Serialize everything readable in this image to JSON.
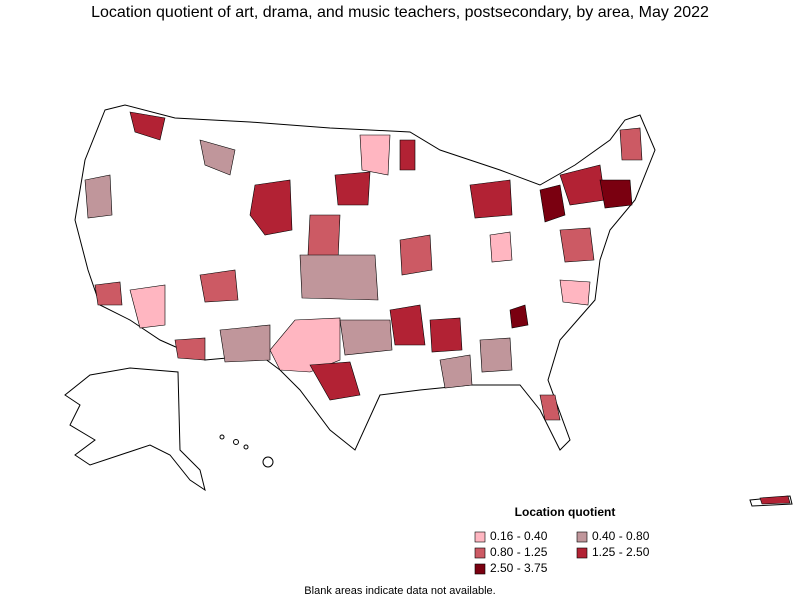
{
  "header": {
    "title": "Location quotient of art, drama, and music teachers, postsecondary, by area, May 2022"
  },
  "legend": {
    "title": "Location quotient",
    "items": [
      {
        "label": "0.16 - 0.40",
        "color": "#ffb6c1"
      },
      {
        "label": "0.40 - 0.80",
        "color": "#c0969b"
      },
      {
        "label": "0.80 - 1.25",
        "color": "#cc5a64"
      },
      {
        "label": "1.25 - 2.50",
        "color": "#b22234"
      },
      {
        "label": "2.50 - 3.75",
        "color": "#7a0010"
      }
    ]
  },
  "footnote": "Blank areas indicate data not available."
}
